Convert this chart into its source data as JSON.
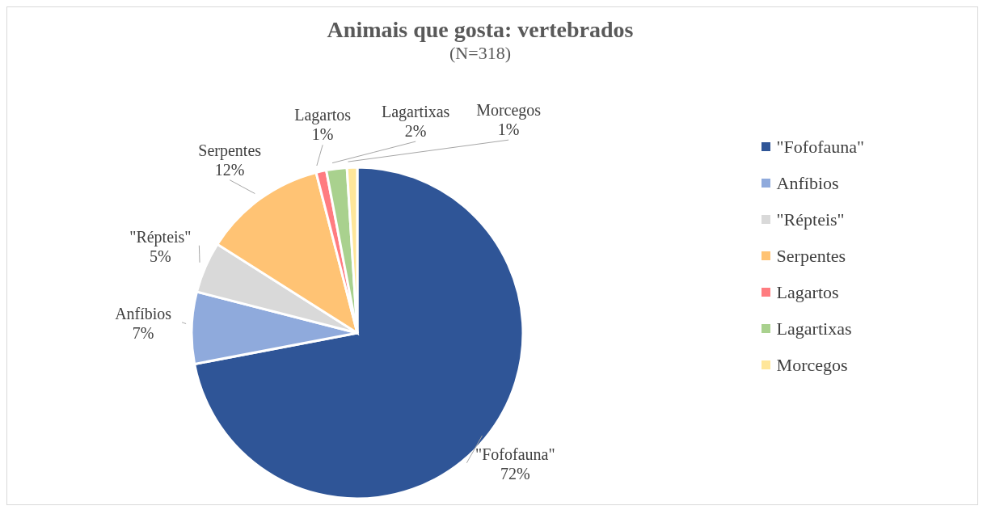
{
  "chart_data": {
    "type": "pie",
    "title": "Animais que gosta: vertebrados",
    "subtitle": "(N=318)",
    "categories": [
      "\"Fofofauna\"",
      "Anfíbios",
      "\"Répteis\"",
      "Serpentes",
      "Lagartos",
      "Lagartixas",
      "Morcegos"
    ],
    "values": [
      72,
      7,
      5,
      12,
      1,
      2,
      1
    ],
    "value_labels": [
      "72%",
      "7%",
      "5%",
      "12%",
      "1%",
      "2%",
      "1%"
    ],
    "colors": [
      "#2f5597",
      "#8faadc",
      "#d9d9d9",
      "#ffc374",
      "#ff7c80",
      "#a9d18e",
      "#ffe699"
    ],
    "legend": "right"
  }
}
